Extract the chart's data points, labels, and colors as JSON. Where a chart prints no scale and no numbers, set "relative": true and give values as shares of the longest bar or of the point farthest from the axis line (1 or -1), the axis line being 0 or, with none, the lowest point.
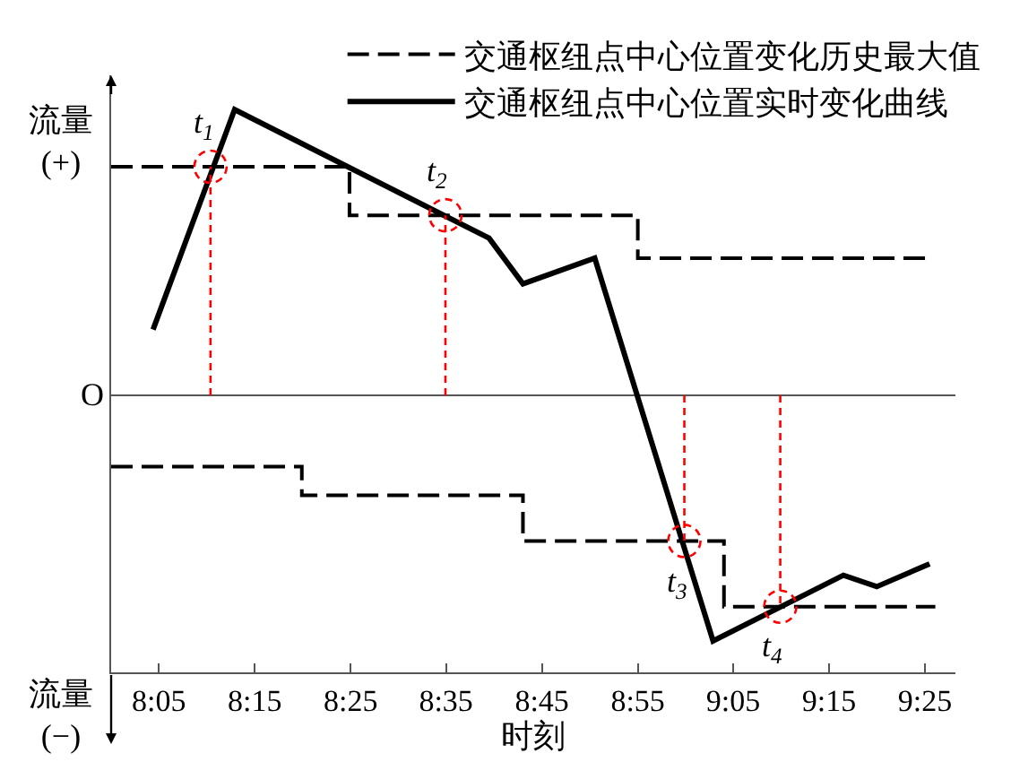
{
  "chart_data": {
    "type": "line",
    "relative": true,
    "xlabel": "时刻",
    "ylabel": "流量\n(+)",
    "legend": "top right",
    "grid": false,
    "xlim": [
      8.0,
      9.47
    ],
    "xticks": [
      {
        "value": 8.083,
        "label": "8:05"
      },
      {
        "value": 8.25,
        "label": "8:15"
      },
      {
        "value": 8.417,
        "label": "8:25"
      },
      {
        "value": 8.583,
        "label": "8:35"
      },
      {
        "value": 8.75,
        "label": "8:45"
      },
      {
        "value": 8.917,
        "label": "8:55"
      },
      {
        "value": 9.083,
        "label": "9:05"
      },
      {
        "value": 9.25,
        "label": "9:15"
      },
      {
        "value": 9.417,
        "label": "9:25"
      }
    ],
    "series": [
      {
        "name": "交通枢纽点中心位置变化历史最大值",
        "type": "step",
        "color": "#000000",
        "line_style": "dashed",
        "x": [
          8.0,
          8.415,
          8.917,
          9.417
        ],
        "values": [
          0.8,
          0.63,
          0.48,
          0.48
        ]
      },
      {
        "type": "step",
        "color": "#000000",
        "line_style": "dashed",
        "x": [
          8.0,
          8.332,
          8.717,
          9.067,
          9.435
        ],
        "values": [
          -0.25,
          -0.35,
          -0.51,
          -0.74,
          -0.74
        ]
      },
      {
        "name": "交通枢纽点中心位置实时变化曲线",
        "color": "#000000",
        "line_style": "solid",
        "x": [
          8.073,
          8.215,
          8.658,
          8.717,
          8.842,
          9.048,
          9.275,
          9.333,
          9.425
        ],
        "values": [
          0.23,
          1,
          0.55,
          0.39,
          0.48,
          -0.86,
          -0.63,
          -0.67,
          -0.59
        ]
      }
    ],
    "annotations": [
      {
        "text": "t$_{1}$",
        "x": 8.173,
        "y": 0.8
      },
      {
        "text": "t$_{2}$",
        "x": 8.582,
        "y": 0.63
      },
      {
        "text": "t$_{3}$",
        "x": 8.998,
        "y": -0.51
      },
      {
        "text": "t$_{4}$",
        "x": 9.165,
        "y": -0.74
      },
      "O",
      "流量\n(−)"
    ]
  }
}
